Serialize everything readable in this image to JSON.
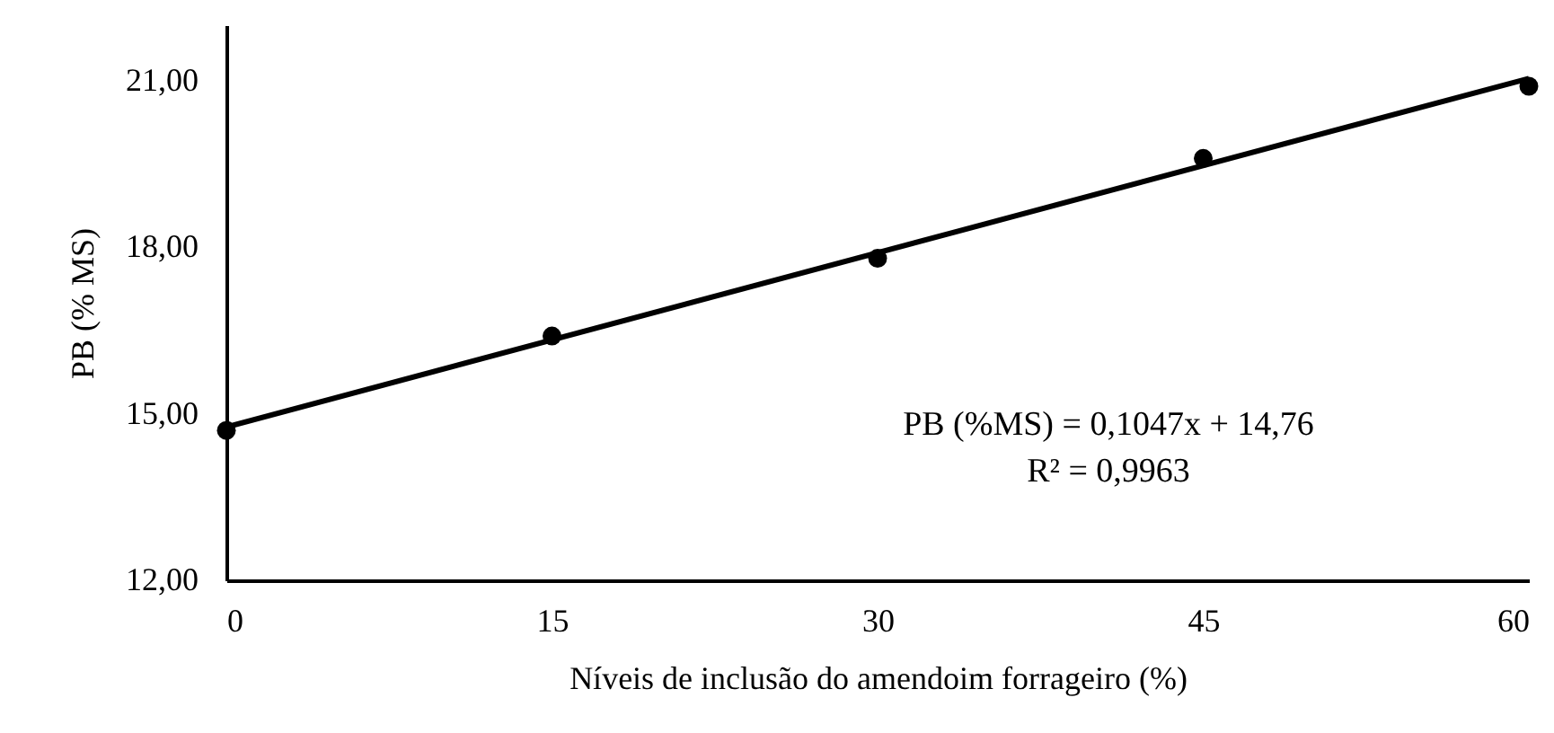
{
  "chart_data": {
    "type": "scatter",
    "xlabel": "Níveis de inclusão do amendoim forrageiro (%)",
    "ylabel": "PB (% MS)",
    "x": [
      0,
      15,
      30,
      45,
      60
    ],
    "series": [
      {
        "color": "#000000",
        "marker": "circle",
        "values": [
          14.7,
          16.4,
          17.8,
          19.6,
          20.9
        ]
      },
      {
        "type": "line",
        "color": "#000000",
        "marker": "none",
        "x": [
          0,
          60
        ],
        "values": [
          14.76,
          21.04
        ]
      }
    ],
    "xlim": [
      0,
      60
    ],
    "xticks": [
      0,
      15,
      30,
      45,
      60
    ],
    "ylim": [
      12,
      22
    ],
    "yticks": [
      {
        "value": 12,
        "label": "12,00"
      },
      {
        "value": 15,
        "label": "15,00"
      },
      {
        "value": 18,
        "label": "18,00"
      },
      {
        "value": 21,
        "label": "21,00"
      }
    ],
    "annotations": [
      "PB (%MS) = 0,1047x + 14,76",
      "R² = 0,9963"
    ],
    "grid": false,
    "line_style": "solid"
  }
}
